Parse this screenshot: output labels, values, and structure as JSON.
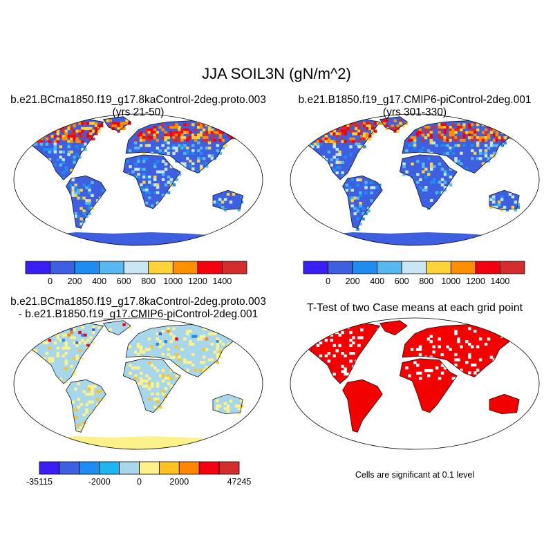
{
  "figure": {
    "title": "JJA SOIL3N (gN/m^2)",
    "note": "Cells are significant at 0.1 level"
  },
  "panels": [
    {
      "title_line1": "b.e21.BCma1850.f19_g17.8kaControl-2deg.proto.003",
      "title_line2": "(yrs 21-50)"
    },
    {
      "title_line1": "b.e21.B1850.f19_g17.CMIP6-piControl-2deg.001",
      "title_line2": "(yrs 301-330)"
    },
    {
      "title_line1": "b.e21.BCma1850.f19_g17.8kaControl-2deg.proto.003",
      "title_line2": "- b.e21.B1850.f19_g17.CMIP6-piControl-2deg.001"
    },
    {
      "title_line1": "T-Test of two Case means at each grid point",
      "title_line2": ""
    }
  ],
  "colors": {
    "abs_scale": [
      "#3a1ff5",
      "#3d5fe0",
      "#1e8df2",
      "#56b8ee",
      "#c9e6f5",
      "#fdd33a",
      "#fd8f00",
      "#f5000f",
      "#d42d2d"
    ],
    "diff_scale": [
      "#3a1ff5",
      "#3d5fe0",
      "#1e8df2",
      "#1fb6f0",
      "#a8d7ec",
      "#fdf28a",
      "#fdc120",
      "#fd8800",
      "#f50010",
      "#d42d2d"
    ],
    "ttest_significant": "#f30000"
  },
  "chart_data": [
    {
      "type": "heatmap",
      "title": "b.e21.BCma1850.f19_g17.8kaControl-2deg.proto.003 (yrs 21-50)",
      "projection": "Robinson",
      "colorbar": {
        "tick_labels": [
          "0",
          "200",
          "400",
          "600",
          "800",
          "1000",
          "1200",
          "1400"
        ]
      },
      "dominant_value_range": [
        0,
        200
      ],
      "high_value_regions": [
        "northern Canada",
        "Alaska",
        "Siberia",
        "northern Europe"
      ]
    },
    {
      "type": "heatmap",
      "title": "b.e21.B1850.f19_g17.CMIP6-piControl-2deg.001 (yrs 301-330)",
      "projection": "Robinson",
      "colorbar": {
        "tick_labels": [
          "0",
          "200",
          "400",
          "600",
          "800",
          "1000",
          "1200",
          "1400"
        ]
      },
      "dominant_value_range": [
        0,
        200
      ],
      "high_value_regions": [
        "northern Canada",
        "Alaska",
        "Siberia",
        "northern Europe"
      ]
    },
    {
      "type": "heatmap",
      "title": "b.e21.BCma1850.f19_g17.8kaControl-2deg.proto.003 - b.e21.B1850.f19_g17.CMIP6-piControl-2deg.001",
      "projection": "Robinson",
      "colorbar": {
        "tick_labels": [
          "-35115",
          "-2000",
          "0",
          "2000",
          "47245"
        ]
      },
      "dominant_value_range": [
        -500,
        500
      ]
    },
    {
      "type": "heatmap",
      "title": "T-Test of two Case means at each grid point",
      "projection": "Robinson",
      "significance_level": 0.1,
      "significant_color": "#f30000"
    }
  ]
}
